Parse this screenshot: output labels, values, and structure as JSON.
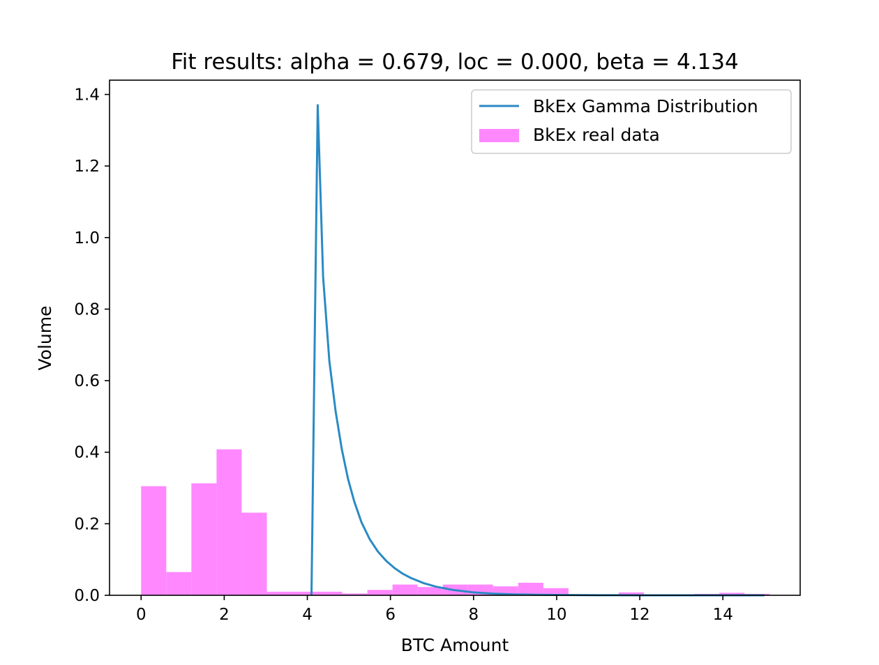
{
  "chart_data": {
    "type": "bar",
    "title": "Fit results: alpha = 0.679,  loc = 0.000, beta = 4.134",
    "xlabel": "BTC Amount",
    "ylabel": "Volume",
    "xlim": [
      -0.76,
      15.86
    ],
    "ylim": [
      0,
      1.44
    ],
    "xticks": [
      0,
      2,
      4,
      6,
      8,
      10,
      12,
      14
    ],
    "yticks": [
      0.0,
      0.2,
      0.4,
      0.6,
      0.8,
      1.0,
      1.2,
      1.4
    ],
    "xtick_labels": [
      "0",
      "2",
      "4",
      "6",
      "8",
      "10",
      "12",
      "14"
    ],
    "ytick_labels": [
      "0.0",
      "0.2",
      "0.4",
      "0.6",
      "0.8",
      "1.0",
      "1.2",
      "1.4"
    ],
    "grid": false,
    "legend_position": "top-right",
    "colors": {
      "hist": "#ff88ff",
      "line": "#2a8ac4"
    },
    "histogram": {
      "name": "BkEx real data",
      "bin_edges": [
        0,
        0.605,
        1.21,
        1.815,
        2.42,
        3.025,
        3.63,
        4.235,
        4.84,
        5.445,
        6.05,
        6.655,
        7.26,
        7.865,
        8.47,
        9.075,
        9.68,
        10.285,
        10.89,
        11.495,
        12.1,
        12.705,
        13.31,
        13.915,
        14.52,
        15.125
      ],
      "values": [
        0.305,
        0.065,
        0.313,
        0.408,
        0.231,
        0.01,
        0.01,
        0.01,
        0.005,
        0.015,
        0.03,
        0.023,
        0.03,
        0.03,
        0.025,
        0.035,
        0.02,
        0.002,
        0.002,
        0.008,
        0.002,
        0.002,
        0.004,
        0.007,
        0.004
      ]
    },
    "line": {
      "name": "BkEx Gamma Distribution",
      "x": [
        4.1,
        4.22,
        4.25,
        4.38,
        4.53,
        4.68,
        4.83,
        4.98,
        5.13,
        5.3,
        5.5,
        5.7,
        5.9,
        6.1,
        6.3,
        6.5,
        6.8,
        7.1,
        7.5,
        8.0,
        8.5,
        9.0,
        9.5,
        10.0,
        11.0,
        12.0,
        13.0,
        14.0,
        15.0
      ],
      "y": [
        0.0,
        1.1,
        1.37,
        0.89,
        0.655,
        0.515,
        0.408,
        0.325,
        0.262,
        0.205,
        0.157,
        0.122,
        0.096,
        0.076,
        0.06,
        0.048,
        0.034,
        0.024,
        0.015,
        0.008,
        0.0045,
        0.0025,
        0.0015,
        0.0009,
        0.0003,
        0.0001,
        4e-05,
        1e-05,
        0.0
      ]
    },
    "legend": [
      "BkEx Gamma Distribution",
      "BkEx real data"
    ]
  }
}
